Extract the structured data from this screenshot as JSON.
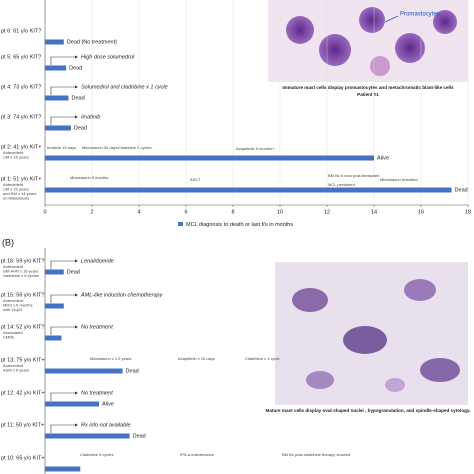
{
  "chart_data": [
    {
      "type": "swimmer",
      "xlim": [
        0,
        18
      ],
      "xticks": [
        0,
        2,
        4,
        6,
        8,
        10,
        12,
        14,
        16,
        18
      ],
      "color": "#4472c4",
      "legend_label": "MCL diagnosis to death or last f/u in months",
      "categories": [
        "pt 6: 61 y/o KIT?",
        "pt 5: 65 y/o KIT?",
        "pt 4: 73 y/o KIT?",
        "pt 3: 74 y/o KIT?",
        "pt 2: 41 y/o KIT+",
        "pt 1: 51 y/o KIT+"
      ],
      "details": [
        [],
        [],
        [],
        [],
        [
          "Antecedent",
          "CM x 16 years"
        ],
        [
          "Antecedent",
          "CM x 22 years",
          "and SM x 14 years",
          "on Midostaurin"
        ]
      ],
      "values": [
        0.8,
        0.9,
        1.0,
        1.1,
        14,
        17.3
      ],
      "status": [
        "Dead (No treatment)",
        "Dead",
        "Dead",
        "Dead",
        "Alive",
        "Dead"
      ],
      "notes": [
        [],
        [
          "High dose solumedrol"
        ],
        [
          "Solumedrol and cladribine x 1 cycle"
        ],
        [
          "Imatinib"
        ],
        [
          "Imatinib 15 days",
          "Midostaurin 30 days",
          "Cladribine 2 cycles",
          "Avapritinib 9 months+"
        ],
        [
          "Midostaurin 6 months",
          "ASCT",
          "BM Bx 6 mos post-transplant",
          "MCL persistent",
          "Midostaurin restarted"
        ]
      ],
      "image_label": "Promastocytes",
      "image_caption": [
        "Immature mast cells display promastocytes and metachromatic blast-like cells",
        "Patient #1"
      ]
    },
    {
      "type": "swimmer",
      "panel_label": "(B)",
      "xlim": [
        0,
        18
      ],
      "color": "#4472c4",
      "categories": [
        "pt 16: 59 y/o KIT?",
        "pt 15: 56 y/o KIT?",
        "pt 14: 52 y/o KIT?",
        "pt 13: 75 y/o KIT+",
        "pt 12: 42 y/o KIT+",
        "pt 11: 50 y/o KIT+",
        "pt 10: 65 y/o KIT+"
      ],
      "details": [
        [
          "Antecedent",
          "SM-AHN x 16 years",
          "cladribine x 6 cycles"
        ],
        [
          "Antecedent",
          "MDS x 6 months",
          "with 11q23"
        ],
        [
          "Associated",
          "CMML"
        ],
        [
          "Antecedent",
          "ASM x 6 years"
        ],
        [],
        [],
        []
      ],
      "values": [
        0.8,
        0.8,
        0.7,
        3.3,
        2.3,
        3.6,
        1.5
      ],
      "status": [
        "Dead",
        null,
        null,
        "Dead",
        "Alive",
        "Dead",
        null
      ],
      "notes": [
        [
          "Lenalidomide"
        ],
        [
          "AML-like induction chemotherapy"
        ],
        [
          "No treatment"
        ],
        [
          "Midostaurin x 1.5 years",
          "Avapritinib x 10 days",
          "Cladribine x 1 cycle"
        ],
        [
          "No treatment"
        ],
        [
          "Rx info not available"
        ],
        [
          "Cladribine 5 cycles",
          "IFN-a maintenance",
          "BM Bx post-cladribine therapy showed"
        ]
      ],
      "image_caption": [
        "Mature mast cells display oval-shaped nuclei , hypogranulation, and spindle-shaped cytology."
      ]
    }
  ]
}
